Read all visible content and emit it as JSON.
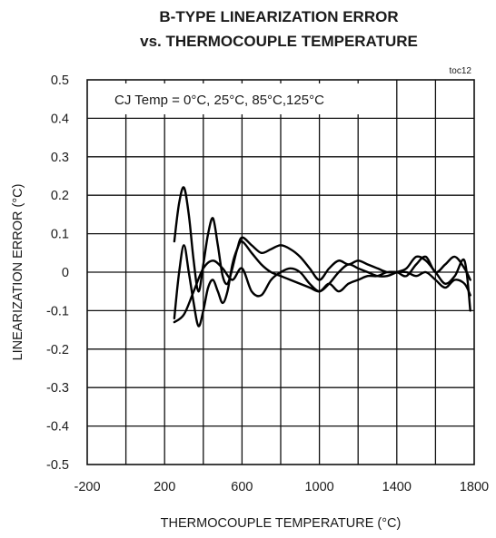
{
  "chart_data": {
    "type": "line",
    "title": "B-TYPE LINEARIZATION ERROR",
    "subtitle": "vs. THERMOCOUPLE TEMPERATURE",
    "toc_label": "toc12",
    "xlabel": "THERMOCOUPLE TEMPERATURE (°C)",
    "ylabel": "LINEARIZATION ERROR (°C)",
    "xlim": [
      -200,
      1800
    ],
    "ylim": [
      -0.5,
      0.5
    ],
    "x_ticks": [
      -200,
      200,
      600,
      1000,
      1400,
      1800
    ],
    "x_tick_labels": [
      "-200",
      "200",
      "600",
      "1000",
      "1400",
      "1800"
    ],
    "y_ticks": [
      0.5,
      0.4,
      0.3,
      0.2,
      0.1,
      0,
      -0.1,
      -0.2,
      -0.3,
      -0.4,
      -0.5
    ],
    "y_tick_labels": [
      "0.5",
      "0.4",
      "0.3",
      "0.2",
      "0.1",
      "0",
      "-0.1",
      "-0.2",
      "-0.3",
      "-0.4",
      "-0.5"
    ],
    "x_grid_values": [
      0,
      200,
      400,
      600,
      800,
      1000,
      1200,
      1400,
      1600
    ],
    "grid": true,
    "legend_text": "CJ Temp = 0°C, 25°C, 85°C,125°C",
    "legend_position": "top-left",
    "series": [
      {
        "x": [
          250,
          275,
          300,
          325,
          350,
          375,
          400,
          425,
          450,
          475,
          500,
          525,
          550,
          575,
          600,
          650,
          700,
          750,
          800,
          850,
          900,
          950,
          1000,
          1050,
          1100,
          1150,
          1200,
          1250,
          1300,
          1350,
          1400,
          1450,
          1500,
          1550,
          1600,
          1650,
          1700,
          1750,
          1780
        ],
        "values": [
          0.08,
          0.18,
          0.22,
          0.15,
          0.03,
          -0.05,
          0.02,
          0.1,
          0.14,
          0.07,
          -0.01,
          -0.03,
          0.01,
          0.06,
          0.09,
          0.07,
          0.05,
          0.06,
          0.07,
          0.06,
          0.04,
          0.01,
          -0.02,
          0.01,
          0.03,
          0.02,
          0.03,
          0.02,
          0.01,
          0.0,
          0.0,
          -0.01,
          0.02,
          0.04,
          0.0,
          0.02,
          0.04,
          0.01,
          -0.02
        ]
      },
      {
        "x": [
          250,
          275,
          300,
          325,
          350,
          375,
          400,
          425,
          450,
          475,
          500,
          525,
          550,
          575,
          600,
          650,
          700,
          750,
          800,
          850,
          900,
          950,
          1000,
          1050,
          1100,
          1150,
          1200,
          1250,
          1300,
          1350,
          1400,
          1450,
          1500,
          1550,
          1600,
          1650,
          1700,
          1750,
          1780
        ],
        "values": [
          -0.12,
          0.0,
          0.07,
          0.0,
          -0.08,
          -0.14,
          -0.1,
          -0.04,
          -0.02,
          -0.05,
          -0.08,
          -0.05,
          0.02,
          0.06,
          0.08,
          0.05,
          0.02,
          0.0,
          -0.01,
          -0.02,
          -0.03,
          -0.04,
          -0.05,
          -0.03,
          0.0,
          0.02,
          0.01,
          0.0,
          -0.01,
          -0.01,
          0.0,
          0.01,
          0.04,
          0.03,
          0.0,
          -0.03,
          -0.01,
          0.03,
          -0.1
        ]
      },
      {
        "x": [
          250,
          300,
          350,
          400,
          450,
          500,
          550,
          600,
          650,
          700,
          750,
          800,
          850,
          900,
          950,
          1000,
          1050,
          1100,
          1150,
          1200,
          1250,
          1300,
          1350,
          1400,
          1450,
          1500,
          1550,
          1600,
          1650,
          1700,
          1750,
          1780
        ],
        "values": [
          -0.13,
          -0.11,
          -0.05,
          0.01,
          0.03,
          0.01,
          -0.02,
          0.01,
          -0.05,
          -0.06,
          -0.02,
          0.0,
          0.01,
          0.0,
          -0.03,
          -0.05,
          -0.03,
          -0.05,
          -0.03,
          -0.02,
          -0.01,
          -0.01,
          0.0,
          0.0,
          0.0,
          -0.01,
          0.0,
          -0.02,
          -0.04,
          -0.02,
          -0.03,
          -0.06
        ]
      }
    ]
  }
}
